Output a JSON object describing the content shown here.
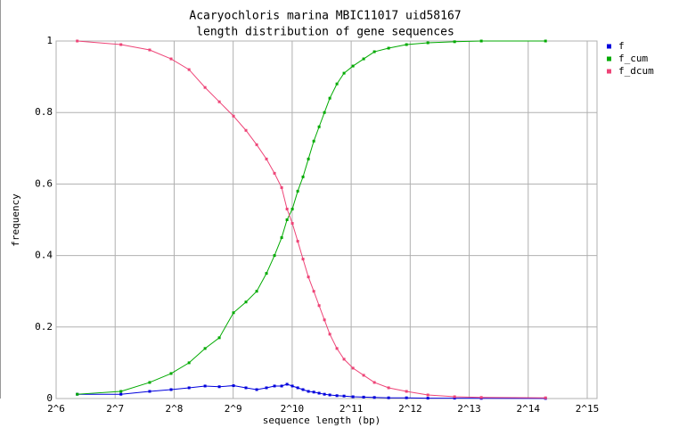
{
  "chart_data": {
    "type": "line",
    "title": "Acaryochloris marina MBIC11017 uid58167",
    "subtitle": "length distribution of gene sequences",
    "x_label": "sequence length (bp)",
    "y_label": "frequency",
    "x_log_base": 2,
    "grid": true,
    "legend": "right",
    "x": [
      82,
      137,
      192,
      247,
      305,
      368,
      435,
      514,
      595,
      675,
      757,
      832,
      905,
      964,
      1026,
      1093,
      1163,
      1239,
      1320,
      1405,
      1496,
      1593,
      1732,
      1883,
      2092,
      2371,
      2689,
      3179,
      3921,
      5041,
      6899,
      9443,
      20078
    ],
    "series": [
      {
        "name": "f",
        "color": "#0000dd",
        "values": [
          0.012,
          0.012,
          0.02,
          0.025,
          0.03,
          0.035,
          0.033,
          0.036,
          0.03,
          0.025,
          0.03,
          0.035,
          0.035,
          0.04,
          0.035,
          0.03,
          0.025,
          0.02,
          0.018,
          0.015,
          0.012,
          0.01,
          0.008,
          0.007,
          0.005,
          0.004,
          0.003,
          0.002,
          0.002,
          0.001,
          0.001,
          0.0005,
          0.0003
        ]
      },
      {
        "name": "f_cum",
        "color": "#00aa00",
        "values": [
          0.012,
          0.02,
          0.045,
          0.07,
          0.1,
          0.14,
          0.17,
          0.24,
          0.27,
          0.3,
          0.35,
          0.4,
          0.45,
          0.5,
          0.53,
          0.58,
          0.62,
          0.67,
          0.72,
          0.76,
          0.8,
          0.84,
          0.88,
          0.91,
          0.93,
          0.95,
          0.97,
          0.98,
          0.99,
          0.995,
          0.998,
          1,
          1
        ]
      },
      {
        "name": "f_dcum",
        "color": "#ee4477",
        "values": [
          1,
          0.99,
          0.975,
          0.95,
          0.92,
          0.87,
          0.83,
          0.79,
          0.75,
          0.71,
          0.67,
          0.63,
          0.59,
          0.53,
          0.49,
          0.44,
          0.39,
          0.34,
          0.3,
          0.26,
          0.22,
          0.18,
          0.14,
          0.11,
          0.085,
          0.065,
          0.045,
          0.03,
          0.02,
          0.01,
          0.005,
          0.003,
          0.002
        ]
      }
    ],
    "xlim": [
      64,
      32768
    ],
    "xticks": [
      {
        "value": 64,
        "label": "2^6"
      },
      {
        "value": 128,
        "label": "2^7"
      },
      {
        "value": 256,
        "label": "2^8"
      },
      {
        "value": 512,
        "label": "2^9"
      },
      {
        "value": 1024,
        "label": "2^10"
      },
      {
        "value": 2048,
        "label": "2^11"
      },
      {
        "value": 4096,
        "label": "2^12"
      },
      {
        "value": 8192,
        "label": "2^13"
      },
      {
        "value": 16384,
        "label": "2^14"
      },
      {
        "value": 32768,
        "label": "2^15"
      }
    ],
    "ylim": [
      0,
      1
    ],
    "yticks": [
      0,
      0.2,
      0.4,
      0.6,
      0.8,
      1
    ]
  }
}
